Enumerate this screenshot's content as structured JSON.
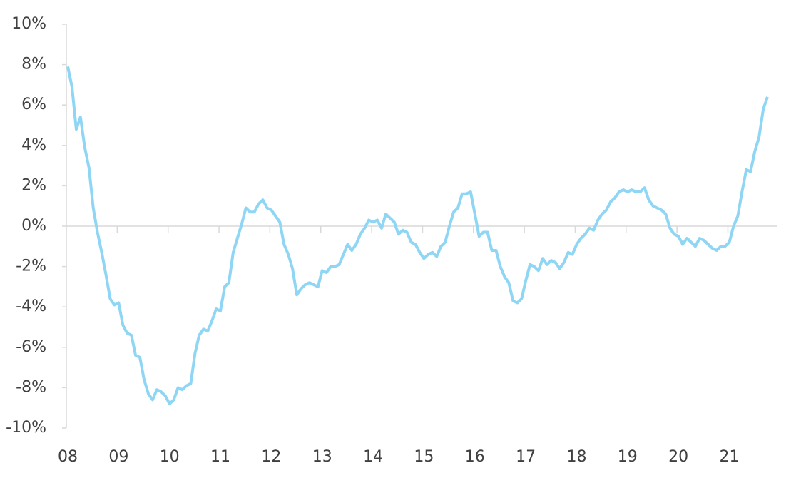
{
  "chart_data": {
    "type": "line",
    "categories": [
      "08",
      null,
      null,
      null,
      null,
      null,
      null,
      null,
      null,
      null,
      null,
      null,
      "09",
      null,
      null,
      null,
      null,
      null,
      null,
      null,
      null,
      null,
      null,
      null,
      "10",
      null,
      null,
      null,
      null,
      null,
      null,
      null,
      null,
      null,
      null,
      null,
      "11",
      null,
      null,
      null,
      null,
      null,
      null,
      null,
      null,
      null,
      null,
      null,
      "12",
      null,
      null,
      null,
      null,
      null,
      null,
      null,
      null,
      null,
      null,
      null,
      "13",
      null,
      null,
      null,
      null,
      null,
      null,
      null,
      null,
      null,
      null,
      null,
      "14",
      null,
      null,
      null,
      null,
      null,
      null,
      null,
      null,
      null,
      null,
      null,
      "15",
      null,
      null,
      null,
      null,
      null,
      null,
      null,
      null,
      null,
      null,
      null,
      "16",
      null,
      null,
      null,
      null,
      null,
      null,
      null,
      null,
      null,
      null,
      null,
      "17",
      null,
      null,
      null,
      null,
      null,
      null,
      null,
      null,
      null,
      null,
      null,
      "18",
      null,
      null,
      null,
      null,
      null,
      null,
      null,
      null,
      null,
      null,
      null,
      "19",
      null,
      null,
      null,
      null,
      null,
      null,
      null,
      null,
      null,
      null,
      null,
      "20",
      null,
      null,
      null,
      null,
      null,
      null,
      null,
      null,
      null,
      null,
      null,
      "21",
      null,
      null,
      null,
      null,
      null,
      null,
      null,
      null,
      null
    ],
    "series": [
      {
        "color": "#8fd6f5",
        "values": [
          7.9,
          6.9,
          4.8,
          5.4,
          3.9,
          2.9,
          0.9,
          -0.3,
          -1.3,
          -2.4,
          -3.6,
          -3.9,
          -3.8,
          -4.9,
          -5.3,
          -5.4,
          -6.4,
          -6.5,
          -7.6,
          -8.3,
          -8.6,
          -8.1,
          -8.2,
          -8.4,
          -8.8,
          -8.6,
          -8.0,
          -8.1,
          -7.9,
          -7.8,
          -6.3,
          -5.4,
          -5.1,
          -5.2,
          -4.7,
          -4.1,
          -4.2,
          -3.0,
          -2.8,
          -1.3,
          -0.6,
          0.1,
          0.9,
          0.7,
          0.7,
          1.1,
          1.3,
          0.9,
          0.8,
          0.5,
          0.2,
          -0.9,
          -1.4,
          -2.1,
          -3.4,
          -3.1,
          -2.9,
          -2.8,
          -2.9,
          -3.0,
          -2.2,
          -2.3,
          -2.0,
          -2.0,
          -1.9,
          -1.4,
          -0.9,
          -1.2,
          -0.9,
          -0.4,
          -0.1,
          0.3,
          0.2,
          0.3,
          -0.1,
          0.6,
          0.4,
          0.2,
          -0.4,
          -0.2,
          -0.3,
          -0.8,
          -0.9,
          -1.3,
          -1.6,
          -1.4,
          -1.3,
          -1.5,
          -1.0,
          -0.8,
          0.0,
          0.7,
          0.9,
          1.6,
          1.6,
          1.7,
          0.6,
          -0.5,
          -0.3,
          -0.3,
          -1.2,
          -1.2,
          -2.0,
          -2.5,
          -2.8,
          -3.7,
          -3.8,
          -3.6,
          -2.7,
          -1.9,
          -2.0,
          -2.2,
          -1.6,
          -1.9,
          -1.7,
          -1.8,
          -2.1,
          -1.8,
          -1.3,
          -1.4,
          -0.9,
          -0.6,
          -0.4,
          -0.1,
          -0.2,
          0.3,
          0.6,
          0.8,
          1.2,
          1.4,
          1.7,
          1.8,
          1.7,
          1.8,
          1.7,
          1.7,
          1.9,
          1.3,
          1.0,
          0.9,
          0.8,
          0.6,
          -0.1,
          -0.4,
          -0.5,
          -0.9,
          -0.6,
          -0.8,
          -1.0,
          -0.6,
          -0.7,
          -0.9,
          -1.1,
          -1.2,
          -1.0,
          -1.0,
          -0.8,
          0.0,
          0.5,
          1.7,
          2.8,
          2.7,
          3.7,
          4.4,
          5.8,
          6.4
        ]
      }
    ],
    "ylim": [
      -10,
      10
    ],
    "yticks": [
      {
        "value": -10,
        "label": "-10%"
      },
      {
        "value": -8,
        "label": "-8%"
      },
      {
        "value": -6,
        "label": "-6%"
      },
      {
        "value": -4,
        "label": "-4%"
      },
      {
        "value": -2,
        "label": "-2%"
      },
      {
        "value": 0,
        "label": "0%"
      },
      {
        "value": 2,
        "label": "2%"
      },
      {
        "value": 4,
        "label": "4%"
      },
      {
        "value": 6,
        "label": "6%"
      },
      {
        "value": 8,
        "label": "8%"
      },
      {
        "value": 10,
        "label": "10%"
      }
    ]
  }
}
